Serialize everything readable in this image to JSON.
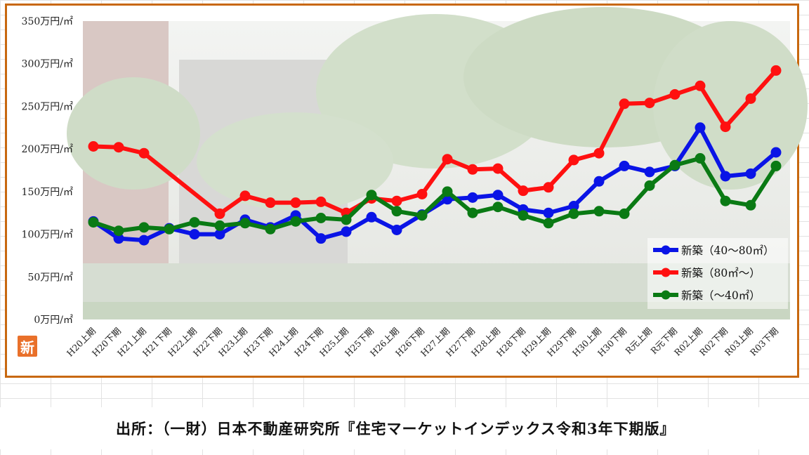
{
  "badge": "新",
  "source_text": "出所：（一財）日本不動産研究所『住宅マーケットインデックス令和3年下期版』",
  "chart_data": {
    "type": "line",
    "ylim": [
      0,
      350
    ],
    "y_ticks": [
      "0万円/㎡",
      "50万円/㎡",
      "100万円/㎡",
      "150万円/㎡",
      "200万円/㎡",
      "250万円/㎡",
      "300万円/㎡",
      "350万円/㎡"
    ],
    "y_tick_values": [
      0,
      50,
      100,
      150,
      200,
      250,
      300,
      350
    ],
    "categories": [
      "H20上期",
      "H20下期",
      "H21上期",
      "H21下期",
      "H22上期",
      "H22下期",
      "H23上期",
      "H23下期",
      "H24上期",
      "H24下期",
      "H25上期",
      "H25下期",
      "H26上期",
      "H26下期",
      "H27上期",
      "H27下期",
      "H28上期",
      "H28下期",
      "H29上期",
      "H29下期",
      "H30上期",
      "H30下期",
      "R元上期",
      "R元下期",
      "R02上期",
      "R02下期",
      "R03上期",
      "R03下期"
    ],
    "legend_position": "bottom-right",
    "series": [
      {
        "name": "新築（40～80㎡）",
        "color": "#0a14e6",
        "values": [
          115,
          95,
          93,
          107,
          100,
          100,
          117,
          108,
          122,
          95,
          103,
          120,
          105,
          123,
          141,
          143,
          146,
          129,
          125,
          133,
          162,
          180,
          173,
          180,
          225,
          168,
          171,
          196
        ]
      },
      {
        "name": "新築（80㎡～）",
        "color": "#ff1010",
        "values": [
          203,
          202,
          195,
          null,
          null,
          124,
          145,
          137,
          137,
          138,
          125,
          142,
          139,
          147,
          188,
          176,
          177,
          151,
          155,
          187,
          195,
          253,
          254,
          264,
          274,
          226,
          259,
          292
        ]
      },
      {
        "name": "新築（～40㎡）",
        "color": "#0a7a14",
        "values": [
          114,
          104,
          108,
          106,
          114,
          110,
          113,
          106,
          115,
          119,
          117,
          146,
          127,
          122,
          150,
          125,
          132,
          122,
          113,
          124,
          127,
          124,
          157,
          181,
          189,
          139,
          134,
          180
        ]
      }
    ]
  }
}
